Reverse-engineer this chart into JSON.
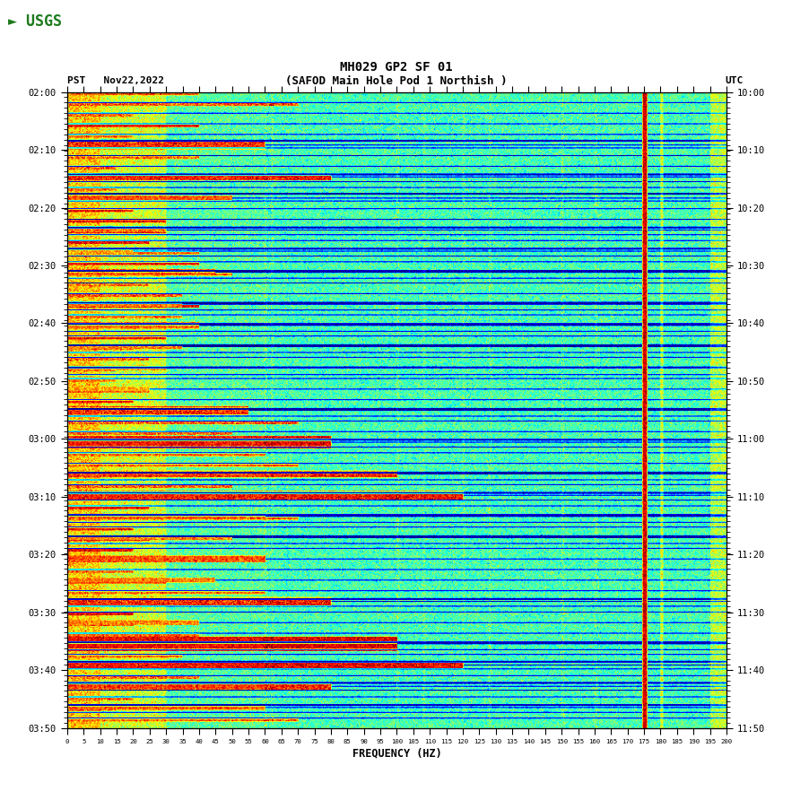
{
  "title_line1": "MH029 GP2 SF 01",
  "title_line2": "(SAFOD Main Hole Pod 1 Northish )",
  "date_label": "PST   Nov22,2022",
  "utc_label": "UTC",
  "xlabel": "FREQUENCY (HZ)",
  "freq_min": 0,
  "freq_max": 200,
  "ytick_pst": [
    "02:00",
    "02:10",
    "02:20",
    "02:30",
    "02:40",
    "02:50",
    "03:00",
    "03:10",
    "03:20",
    "03:30",
    "03:40",
    "03:50"
  ],
  "ytick_utc": [
    "10:00",
    "10:10",
    "10:20",
    "10:30",
    "10:40",
    "10:50",
    "11:00",
    "11:10",
    "11:20",
    "11:30",
    "11:40",
    "11:50"
  ],
  "xtick_vals": [
    0,
    5,
    10,
    15,
    20,
    25,
    30,
    35,
    40,
    45,
    50,
    55,
    60,
    65,
    70,
    75,
    80,
    85,
    90,
    95,
    100,
    105,
    110,
    115,
    120,
    125,
    130,
    135,
    140,
    145,
    150,
    155,
    160,
    165,
    170,
    175,
    180,
    185,
    190,
    195,
    200
  ],
  "fig_width": 9.02,
  "fig_height": 8.92,
  "bg_color": "#ffffff",
  "cmap": "jet"
}
